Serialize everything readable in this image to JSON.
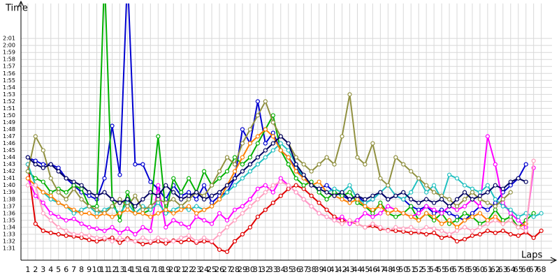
{
  "chart_data": {
    "type": "line",
    "y_label": "Time",
    "x_label": "Laps",
    "x": [
      1,
      2,
      3,
      4,
      5,
      6,
      7,
      8,
      9,
      10,
      11,
      12,
      13,
      14,
      15,
      16,
      17,
      18,
      19,
      20,
      21,
      22,
      23,
      24,
      25,
      26,
      27,
      28,
      29,
      30,
      31,
      32,
      33,
      34,
      35,
      36,
      37,
      38,
      39,
      40,
      41,
      42,
      43,
      44,
      45,
      46,
      47,
      48,
      49,
      50,
      51,
      52,
      53,
      54,
      55,
      56,
      57,
      58,
      59,
      60,
      61,
      62,
      63,
      64,
      65,
      66,
      67,
      68
    ],
    "xlim": [
      0.1,
      69.4
    ],
    "xticks": [
      1,
      2,
      3,
      4,
      5,
      6,
      7,
      8,
      9,
      10,
      11,
      12,
      13,
      14,
      15,
      16,
      17,
      18,
      19,
      20,
      21,
      22,
      23,
      24,
      25,
      26,
      27,
      28,
      29,
      30,
      31,
      32,
      33,
      34,
      35,
      36,
      37,
      38,
      39,
      40,
      41,
      42,
      43,
      44,
      45,
      46,
      47,
      48,
      49,
      50,
      51,
      52,
      53,
      54,
      55,
      56,
      57,
      58,
      59,
      60,
      61,
      62,
      63,
      64,
      65,
      66,
      67,
      68
    ],
    "ylim": [
      89.3,
      126
    ],
    "yticks": [
      {
        "value": 91,
        "label": "1:31"
      },
      {
        "value": 92,
        "label": "1:32"
      },
      {
        "value": 93,
        "label": "1:33"
      },
      {
        "value": 94,
        "label": "1:34"
      },
      {
        "value": 95,
        "label": "1:35"
      },
      {
        "value": 96,
        "label": "1:36"
      },
      {
        "value": 97,
        "label": "1:37"
      },
      {
        "value": 98,
        "label": "1:38"
      },
      {
        "value": 99,
        "label": "1:39"
      },
      {
        "value": 100,
        "label": "1:40"
      },
      {
        "value": 101,
        "label": "1:41"
      },
      {
        "value": 102,
        "label": "1:42"
      },
      {
        "value": 103,
        "label": "1:43"
      },
      {
        "value": 104,
        "label": "1:44"
      },
      {
        "value": 105,
        "label": "1:45"
      },
      {
        "value": 106,
        "label": "1:46"
      },
      {
        "value": 107,
        "label": "1:47"
      },
      {
        "value": 108,
        "label": "1:48"
      },
      {
        "value": 109,
        "label": "1:49"
      },
      {
        "value": 110,
        "label": "1:50"
      },
      {
        "value": 111,
        "label": "1:51"
      },
      {
        "value": 112,
        "label": "1:52"
      },
      {
        "value": 113,
        "label": "1:53"
      },
      {
        "value": 114,
        "label": "1:54"
      },
      {
        "value": 115,
        "label": "1:55"
      },
      {
        "value": 116,
        "label": "1:56"
      },
      {
        "value": 117,
        "label": "1:57"
      },
      {
        "value": 118,
        "label": "1:58"
      },
      {
        "value": 119,
        "label": "1:59"
      },
      {
        "value": 120,
        "label": "2:00"
      },
      {
        "value": 121,
        "label": "2:01"
      }
    ],
    "grid": true,
    "series": [
      {
        "color": "#e00000",
        "values": [
          103,
          94.5,
          93.5,
          93.2,
          93,
          92.8,
          92.7,
          92.5,
          92.2,
          92,
          92.3,
          92.5,
          91.8,
          92.4,
          92,
          91.6,
          91.8,
          92,
          91.7,
          92.1,
          91.9,
          92.2,
          91.8,
          92,
          91.9,
          90.8,
          90.5,
          92,
          93,
          94,
          95.5,
          96.5,
          97.5,
          98.5,
          99.5,
          100,
          99.5,
          98.5,
          97.5,
          96.5,
          95.5,
          95,
          94.8,
          94.5,
          94,
          94.2,
          93.8,
          93.6,
          93.5,
          93.4,
          93.2,
          93.3,
          93,
          93.2,
          92.5,
          92.8,
          92,
          92.3,
          92.8,
          93,
          93.5,
          93.2,
          93.5,
          93,
          92.8,
          93.3,
          92.5,
          93.5
        ]
      },
      {
        "color": "#0000d0",
        "values": [
          104,
          103.5,
          103,
          103,
          102.5,
          101,
          100,
          99,
          98.5,
          98,
          101,
          108.5,
          101.5,
          130,
          103,
          103,
          100.5,
          99.5,
          98,
          100,
          98.5,
          99,
          98,
          100,
          97.5,
          98.5,
          99,
          101,
          108,
          106,
          112,
          106,
          107.5,
          105,
          104,
          102.5,
          101,
          100,
          99.5,
          100,
          99,
          98.5,
          98,
          98.5,
          97.5,
          98,
          99,
          98,
          98.5,
          98,
          97,
          96.5,
          97,
          96,
          96.5,
          96,
          95.5,
          95,
          96,
          97,
          96.5,
          97.5,
          99,
          100,
          101,
          103,
          null,
          null
        ]
      },
      {
        "color": "#00b000",
        "values": [
          102,
          101,
          100.5,
          99,
          99.5,
          99,
          100,
          99.5,
          97,
          97,
          130,
          98,
          95,
          99,
          96,
          96,
          96.5,
          107,
          96,
          101,
          99,
          101,
          99,
          102,
          100,
          101,
          102,
          104,
          103,
          104,
          106,
          108,
          110,
          105,
          103,
          101,
          100,
          100.5,
          99,
          98,
          99,
          98.5,
          99,
          97.5,
          97,
          96,
          97.5,
          96,
          95.5,
          96,
          97,
          95,
          96,
          95,
          96,
          94.5,
          95,
          96,
          95.5,
          94.5,
          95,
          96.5,
          95,
          95.5,
          94,
          95,
          96,
          null
        ]
      },
      {
        "color": "#ff00ff",
        "values": [
          101,
          98.5,
          97.5,
          96,
          95.5,
          95,
          95.2,
          94.5,
          94,
          93.8,
          93.5,
          94,
          93.2,
          93.8,
          93,
          94,
          93.5,
          100,
          94,
          95,
          94.5,
          94,
          95.5,
          95,
          94.5,
          96,
          95,
          96.5,
          97,
          98,
          99.5,
          100,
          99,
          101,
          100,
          99,
          98,
          97,
          96,
          95.5,
          95,
          95.5,
          94.5,
          95,
          96,
          95.5,
          96,
          97,
          96.5,
          96,
          95.5,
          96,
          97,
          96.5,
          96,
          97,
          96.5,
          97,
          98,
          97,
          107,
          103,
          97.5,
          96,
          95,
          94,
          102.5,
          null
        ]
      },
      {
        "color": "#20c0c0",
        "values": [
          103,
          100,
          99,
          98,
          97.5,
          97,
          96,
          96.5,
          97,
          96,
          96.5,
          97,
          96,
          97.5,
          96,
          97,
          96.5,
          97.5,
          96,
          96.5,
          97,
          96.5,
          97,
          96.5,
          97,
          98,
          99,
          100,
          101,
          102,
          103,
          104,
          105,
          106,
          105,
          103,
          101,
          100,
          99.5,
          99,
          99.5,
          99,
          100,
          98,
          97.5,
          98,
          99,
          100,
          98.5,
          98,
          99,
          101,
          99,
          100,
          98,
          101.5,
          101,
          100,
          99.5,
          99,
          100,
          98,
          97,
          96.5,
          95.5,
          96,
          95.5,
          96
        ]
      },
      {
        "color": "#909040",
        "values": [
          102,
          107,
          105,
          101,
          99,
          98,
          99.5,
          98,
          97,
          96.5,
          96,
          97,
          98,
          97,
          98.5,
          96.5,
          97,
          98,
          97.5,
          98,
          97,
          98,
          99,
          98.5,
          100,
          102,
          104,
          103,
          106,
          108,
          110,
          112,
          109,
          107,
          106,
          104,
          103,
          102,
          103,
          104,
          103,
          107,
          113,
          104,
          103,
          106,
          101,
          100,
          104,
          103,
          102,
          101,
          100,
          99,
          98.5,
          98,
          97,
          98,
          99,
          98,
          97.5,
          97,
          98,
          99,
          null,
          null,
          null,
          null
        ]
      },
      {
        "color": "#ff8000",
        "values": [
          101,
          100,
          99,
          98.5,
          97.5,
          97,
          96.5,
          96,
          96,
          95.5,
          96,
          95.5,
          96,
          96.5,
          96,
          96,
          95.5,
          96,
          96.5,
          96,
          96.5,
          97,
          96,
          96.5,
          97,
          98,
          100,
          102,
          104,
          106,
          107,
          108,
          107,
          105,
          104,
          102,
          101,
          100,
          100.5,
          99,
          98.5,
          98,
          97.5,
          98,
          97,
          96.5,
          97,
          96,
          96.5,
          96,
          95.5,
          95,
          96,
          95.5,
          94.5,
          95,
          94,
          95,
          95.5,
          96,
          95,
          95.5,
          94.5,
          95,
          94,
          94.5,
          null,
          null
        ]
      },
      {
        "color": "#000060",
        "values": [
          104,
          103,
          102.5,
          103,
          102,
          101,
          100.5,
          100,
          99,
          98.5,
          99,
          98,
          97.5,
          98,
          97,
          98,
          99,
          98.5,
          100,
          99,
          98,
          98.5,
          99,
          98,
          98.5,
          99,
          100,
          101,
          102,
          103,
          104,
          105,
          106,
          107,
          106,
          103,
          101.5,
          100,
          99.5,
          99,
          98.5,
          99,
          98,
          98.5,
          98,
          98.5,
          99,
          98,
          98.5,
          99,
          98,
          97.5,
          98,
          97.5,
          98,
          97,
          98,
          99,
          98,
          98.5,
          99,
          100,
          99.5,
          100.5,
          101,
          100.5,
          null,
          null
        ]
      },
      {
        "color": "#ffa0c0",
        "values": [
          100,
          100,
          96,
          95,
          94,
          93.5,
          93,
          93,
          92.8,
          92.5,
          92.5,
          92,
          92.5,
          92.2,
          92,
          92.5,
          92,
          92.5,
          92.2,
          92,
          92.5,
          92.8,
          92,
          92.5,
          92,
          93,
          94,
          95,
          96,
          97,
          98,
          99,
          100,
          100.5,
          100,
          99,
          98,
          97,
          96,
          95.5,
          95,
          94.5,
          95,
          94.5,
          94,
          94.5,
          94,
          93.5,
          94,
          93.8,
          94,
          93.5,
          94,
          93.8,
          93.5,
          93,
          93.5,
          94,
          93.5,
          94,
          94.5,
          95,
          94.5,
          95,
          94,
          93.5,
          103.5,
          null
        ]
      }
    ]
  }
}
